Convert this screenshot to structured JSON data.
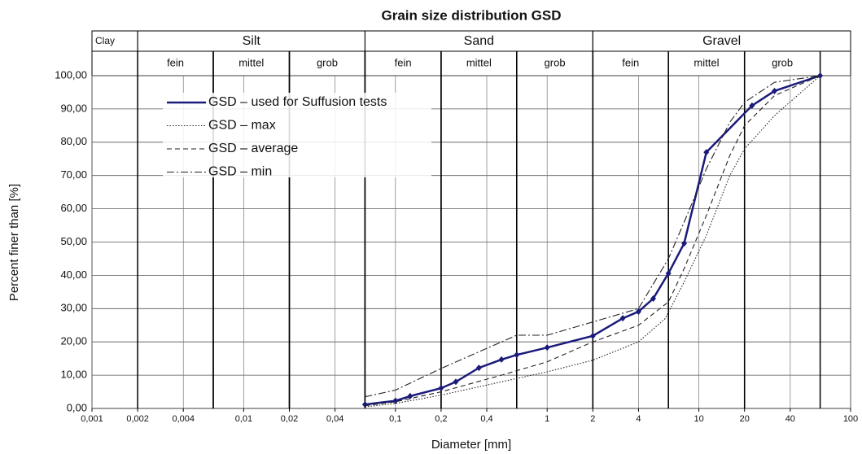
{
  "chart_data": {
    "type": "line",
    "title": "Grain size distribution GSD",
    "x_label": "Diameter [mm]",
    "y_label": "Percent finer than [%]",
    "xscale": "log",
    "xlim": [
      0.001,
      100
    ],
    "ylim": [
      0,
      100
    ],
    "xticks": [
      {
        "value": 0.001,
        "label": "0,001"
      },
      {
        "value": 0.002,
        "label": "0,002"
      },
      {
        "value": 0.004,
        "label": "0,004"
      },
      {
        "value": 0.01,
        "label": "0,01"
      },
      {
        "value": 0.02,
        "label": "0,02"
      },
      {
        "value": 0.04,
        "label": "0,04"
      },
      {
        "value": 0.1,
        "label": "0,1"
      },
      {
        "value": 0.2,
        "label": "0,2"
      },
      {
        "value": 0.4,
        "label": "0,4"
      },
      1,
      2,
      4,
      10,
      20,
      40,
      100
    ],
    "yticks": [
      {
        "value": 0,
        "label": "0,00"
      },
      {
        "value": 10,
        "label": "10,00"
      },
      {
        "value": 20,
        "label": "20,00"
      },
      {
        "value": 30,
        "label": "30,00"
      },
      {
        "value": 40,
        "label": "40,00"
      },
      {
        "value": 50,
        "label": "50,00"
      },
      {
        "value": 60,
        "label": "60,00"
      },
      {
        "value": 70,
        "label": "70,00"
      },
      {
        "value": 80,
        "label": "80,00"
      },
      {
        "value": 90,
        "label": "90,00"
      },
      {
        "value": 100,
        "label": "100,00"
      }
    ],
    "grid": true,
    "classes": [
      {
        "label": "Clay",
        "from": 0.001,
        "to": 0.002
      },
      {
        "label": "Silt",
        "from": 0.002,
        "to": 0.063
      },
      {
        "label": "Sand",
        "from": 0.063,
        "to": 2
      },
      {
        "label": "Gravel",
        "from": 2,
        "to": 100
      }
    ],
    "subclasses": [
      {
        "label": "fein",
        "from": 0.002,
        "to": 0.0063
      },
      {
        "label": "mittel",
        "from": 0.0063,
        "to": 0.02
      },
      {
        "label": "grob",
        "from": 0.02,
        "to": 0.063
      },
      {
        "label": "fein",
        "from": 0.063,
        "to": 0.2
      },
      {
        "label": "mittel",
        "from": 0.2,
        "to": 0.63
      },
      {
        "label": "grob",
        "from": 0.63,
        "to": 2
      },
      {
        "label": "fein",
        "from": 2,
        "to": 6.3
      },
      {
        "label": "mittel",
        "from": 6.3,
        "to": 20
      },
      {
        "label": "grob",
        "from": 20,
        "to": 63
      }
    ],
    "series": [
      {
        "name": "GSD – used for Suffusion tests",
        "color": "#1a1a7a",
        "dash": "solid",
        "marker": "diamond",
        "x": [
          0.063,
          0.1,
          0.125,
          0.2,
          0.25,
          0.355,
          0.5,
          0.63,
          1,
          2,
          3.15,
          4,
          5,
          6.3,
          8,
          11.2,
          22.4,
          31.5,
          63
        ],
        "values": [
          1.2,
          2.3,
          3.7,
          6.1,
          8,
          12.2,
          14.7,
          16.1,
          18.3,
          21.8,
          27.1,
          29.1,
          33,
          40.6,
          49.6,
          77,
          91,
          95.4,
          100
        ]
      },
      {
        "name": "GSD – max",
        "color": "#222222",
        "dash": "dotted",
        "x": [
          0.063,
          0.1,
          0.2,
          0.5,
          1,
          2,
          4,
          6,
          8,
          11.2,
          16,
          20,
          31.5,
          63
        ],
        "values": [
          0.5,
          1.5,
          4,
          8,
          11,
          14.5,
          20,
          27,
          38,
          52,
          70,
          78,
          88,
          100
        ]
      },
      {
        "name": "GSD – average",
        "color": "#222222",
        "dash": "dashed",
        "x": [
          0.063,
          0.1,
          0.2,
          0.5,
          1,
          2,
          4,
          6.3,
          8,
          11.2,
          16,
          20,
          31.5,
          63
        ],
        "values": [
          0.8,
          2,
          5,
          10,
          14,
          20,
          25,
          32,
          42,
          58,
          76,
          85,
          94,
          100
        ]
      },
      {
        "name": "GSD – min",
        "color": "#222222",
        "dash": "dashdot",
        "x": [
          0.063,
          0.1,
          0.2,
          0.5,
          0.63,
          1,
          2,
          4,
          6.3,
          8,
          11.2,
          16,
          20,
          31.5,
          63
        ],
        "values": [
          3.5,
          5.5,
          12,
          20,
          22,
          22,
          26,
          30,
          45,
          56,
          72,
          86,
          92,
          98,
          100
        ]
      }
    ]
  }
}
